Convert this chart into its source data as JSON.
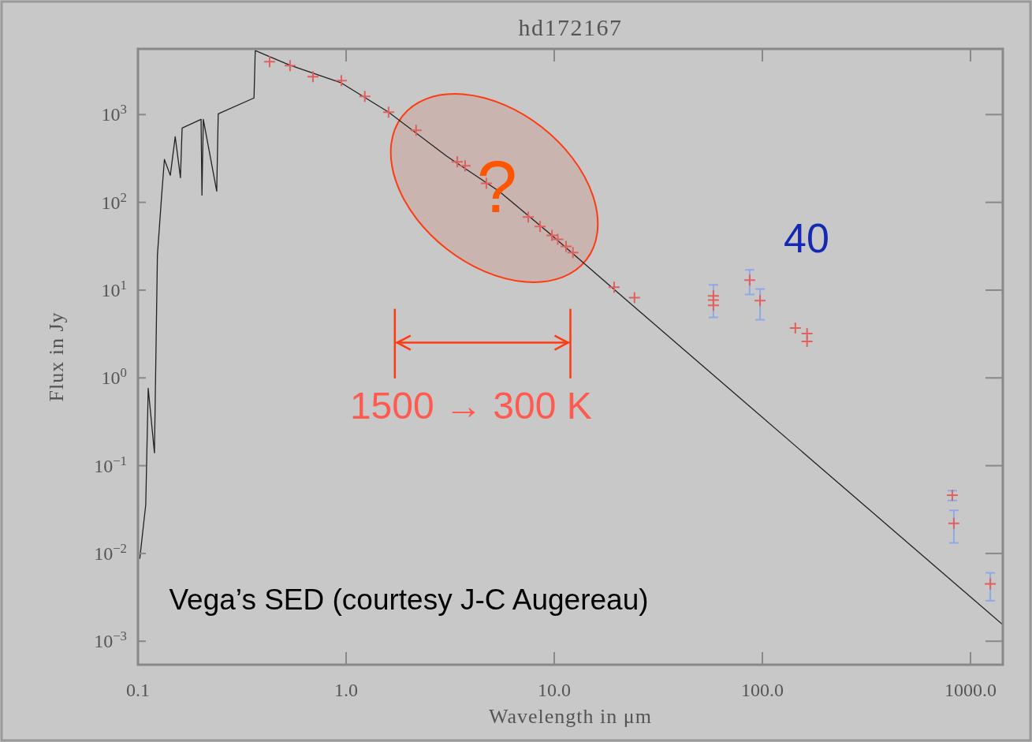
{
  "chart_data": {
    "type": "line",
    "title": "hd172167",
    "xlabel": "Wavelength in μm",
    "ylabel": "Flux in Jy",
    "log": "xy",
    "grid": false,
    "xlim": [
      0.1,
      1430
    ],
    "ylim": [
      0.00054,
      5600
    ],
    "xticks": [
      {
        "value": 0.1,
        "label": "0.1"
      },
      {
        "value": 1,
        "label": "1.0"
      },
      {
        "value": 10,
        "label": "10.0"
      },
      {
        "value": 100,
        "label": "100.0"
      },
      {
        "value": 1000,
        "label": "1000.0"
      }
    ],
    "yticks": [
      {
        "value": 0.001,
        "label": "10$^{−3}$"
      },
      {
        "value": 0.01,
        "label": "10$^{−2}$"
      },
      {
        "value": 0.1,
        "label": "10$^{−1}$"
      },
      {
        "value": 1,
        "label": "10$^{0}$"
      },
      {
        "value": 10,
        "label": "10$^{1}$"
      },
      {
        "value": 100,
        "label": "10$^{2}$"
      },
      {
        "value": 1000,
        "label": "10$^{3}$"
      }
    ],
    "series": [
      {
        "color": "#222222",
        "marker": "none",
        "line_style": "solid",
        "x": [
          0.102,
          0.109,
          0.112,
          0.12,
          0.124,
          0.13,
          0.134,
          0.143,
          0.151,
          0.16,
          0.163,
          0.201,
          0.203,
          0.206,
          0.239,
          0.243,
          0.361,
          0.366,
          0.533,
          0.949,
          1.6,
          3.05,
          5.43,
          9.74,
          19.1,
          1430
        ],
        "values": [
          0.0087,
          0.036,
          0.76,
          0.14,
          25,
          121,
          308,
          203,
          560,
          191,
          703,
          883,
          121,
          883,
          134,
          1020,
          1545,
          5350,
          3680,
          2290,
          1064,
          334,
          134,
          42,
          10.5,
          0.00154
        ]
      },
      {
        "type": "scatter",
        "color": "#e06060",
        "marker": "cross",
        "x": [
          0.429,
          0.538,
          0.693,
          0.949,
          1.23,
          1.6,
          2.17,
          3.42,
          3.73,
          4.72,
          7.5,
          8.55,
          9.75,
          10.4,
          11.4,
          12.3,
          19.4,
          24.3,
          58.2,
          58.2,
          58.2,
          86.9,
          97.5,
          144,
          164,
          164,
          818,
          832,
          1245
        ],
        "values": [
          4000,
          3600,
          2700,
          2430,
          1610,
          1064,
          661,
          289,
          261,
          165,
          68,
          53,
          42,
          38,
          31.5,
          26.8,
          10.8,
          8.2,
          8.6,
          7.7,
          6.7,
          13,
          7.6,
          3.7,
          3.2,
          2.6,
          0.046,
          0.022,
          0.0045
        ],
        "errors": [
          null,
          null,
          null,
          null,
          null,
          null,
          null,
          null,
          null,
          null,
          null,
          null,
          null,
          null,
          null,
          null,
          null,
          null,
          null,
          [
            4.9,
            11.5
          ],
          null,
          [
            8.9,
            17
          ],
          [
            4.6,
            10.3
          ],
          null,
          null,
          null,
          [
            0.04,
            0.052
          ],
          [
            0.0132,
            0.031
          ],
          [
            0.0029,
            0.006
          ]
        ]
      }
    ],
    "annotations": [
      "?",
      "40",
      "1500 → 300 K",
      "Vega’s SED (courtesy J-C Augereau)"
    ]
  }
}
